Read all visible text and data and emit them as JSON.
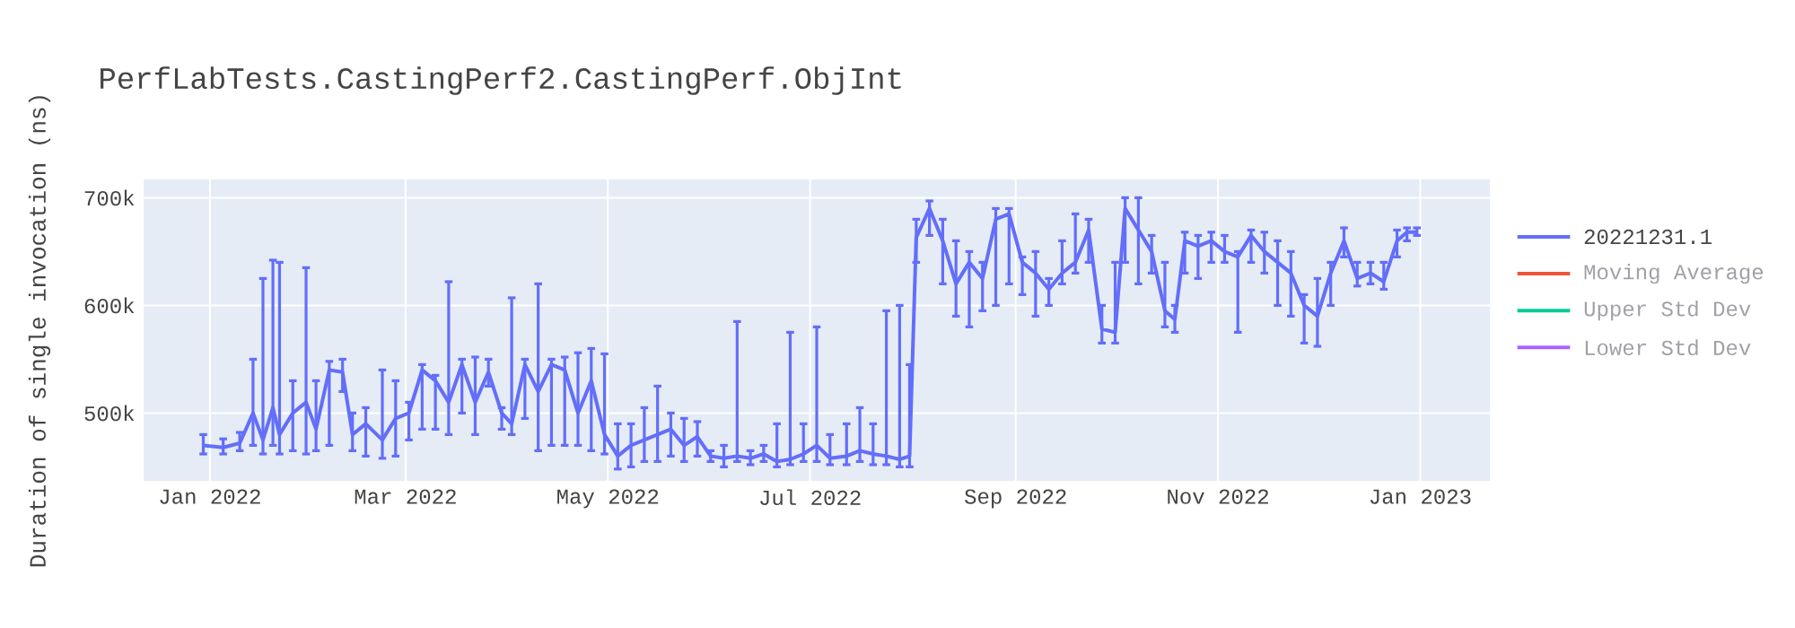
{
  "chart_data": {
    "type": "line",
    "title": "PerfLabTests.CastingPerf2.CastingPerf.ObjInt",
    "ylabel": "Duration of single invocation (ns)",
    "xlim": [
      "2021-12-12",
      "2023-01-22"
    ],
    "ylim": [
      437000,
      717000
    ],
    "xticks": [
      {
        "value": "2022-01-01",
        "label": "Jan 2022"
      },
      {
        "value": "2022-03-01",
        "label": "Mar 2022"
      },
      {
        "value": "2022-05-01",
        "label": "May 2022"
      },
      {
        "value": "2022-07-01",
        "label": "Jul 2022"
      },
      {
        "value": "2022-09-01",
        "label": "Sep 2022"
      },
      {
        "value": "2022-11-01",
        "label": "Nov 2022"
      },
      {
        "value": "2023-01-01",
        "label": "Jan 2023"
      }
    ],
    "yticks": [
      {
        "value": 500000,
        "label": "500k"
      },
      {
        "value": 600000,
        "label": "600k"
      },
      {
        "value": 700000,
        "label": "700k"
      }
    ],
    "grid": true,
    "legend": "right",
    "x": [
      "2021-12-30",
      "2022-01-05",
      "2022-01-10",
      "2022-01-14",
      "2022-01-17",
      "2022-01-20",
      "2022-01-22",
      "2022-01-26",
      "2022-01-30",
      "2022-02-02",
      "2022-02-06",
      "2022-02-10",
      "2022-02-13",
      "2022-02-17",
      "2022-02-22",
      "2022-02-26",
      "2022-03-02",
      "2022-03-06",
      "2022-03-10",
      "2022-03-14",
      "2022-03-18",
      "2022-03-22",
      "2022-03-26",
      "2022-03-30",
      "2022-04-02",
      "2022-04-06",
      "2022-04-10",
      "2022-04-14",
      "2022-04-18",
      "2022-04-22",
      "2022-04-26",
      "2022-04-30",
      "2022-05-04",
      "2022-05-08",
      "2022-05-12",
      "2022-05-16",
      "2022-05-20",
      "2022-05-24",
      "2022-05-28",
      "2022-06-01",
      "2022-06-05",
      "2022-06-09",
      "2022-06-13",
      "2022-06-17",
      "2022-06-21",
      "2022-06-25",
      "2022-06-29",
      "2022-07-03",
      "2022-07-07",
      "2022-07-12",
      "2022-07-16",
      "2022-07-20",
      "2022-07-24",
      "2022-07-28",
      "2022-07-31",
      "2022-08-02",
      "2022-08-06",
      "2022-08-10",
      "2022-08-14",
      "2022-08-18",
      "2022-08-22",
      "2022-08-26",
      "2022-08-30",
      "2022-09-03",
      "2022-09-07",
      "2022-09-11",
      "2022-09-15",
      "2022-09-19",
      "2022-09-23",
      "2022-09-27",
      "2022-10-01",
      "2022-10-04",
      "2022-10-08",
      "2022-10-12",
      "2022-10-16",
      "2022-10-19",
      "2022-10-22",
      "2022-10-26",
      "2022-10-30",
      "2022-11-03",
      "2022-11-07",
      "2022-11-11",
      "2022-11-15",
      "2022-11-19",
      "2022-11-23",
      "2022-11-27",
      "2022-12-01",
      "2022-12-05",
      "2022-12-09",
      "2022-12-13",
      "2022-12-17",
      "2022-12-21",
      "2022-12-25",
      "2022-12-28",
      "2022-12-31"
    ],
    "series": [
      {
        "name": "20221231.1",
        "color": "#636efa",
        "values": [
          470000,
          468000,
          472000,
          500000,
          475000,
          505000,
          480000,
          500000,
          510000,
          485000,
          540000,
          538000,
          480000,
          490000,
          475000,
          495000,
          500000,
          540000,
          530000,
          510000,
          545000,
          510000,
          538000,
          500000,
          490000,
          545000,
          520000,
          545000,
          540000,
          500000,
          530000,
          480000,
          460000,
          470000,
          475000,
          480000,
          485000,
          470000,
          478000,
          460000,
          458000,
          460000,
          458000,
          462000,
          455000,
          457000,
          462000,
          470000,
          458000,
          460000,
          465000,
          462000,
          460000,
          457000,
          460000,
          663000,
          690000,
          660000,
          620000,
          640000,
          625000,
          680000,
          685000,
          640000,
          630000,
          615000,
          630000,
          640000,
          670000,
          578000,
          575000,
          690000,
          670000,
          650000,
          595000,
          587000,
          660000,
          655000,
          660000,
          650000,
          645000,
          665000,
          650000,
          640000,
          630000,
          600000,
          590000,
          630000,
          660000,
          625000,
          630000,
          622000,
          660000,
          668000,
          668000
        ],
        "errors": [
          [
            462000,
            480000
          ],
          [
            462000,
            476000
          ],
          [
            465000,
            482000
          ],
          [
            470000,
            550000
          ],
          [
            462000,
            625000
          ],
          [
            470000,
            642000
          ],
          [
            462000,
            640000
          ],
          [
            465000,
            530000
          ],
          [
            462000,
            635000
          ],
          [
            465000,
            530000
          ],
          [
            470000,
            548000
          ],
          [
            520000,
            550000
          ],
          [
            465000,
            500000
          ],
          [
            460000,
            505000
          ],
          [
            458000,
            540000
          ],
          [
            460000,
            530000
          ],
          [
            475000,
            510000
          ],
          [
            485000,
            545000
          ],
          [
            485000,
            535000
          ],
          [
            480000,
            622000
          ],
          [
            500000,
            550000
          ],
          [
            480000,
            552000
          ],
          [
            525000,
            550000
          ],
          [
            485000,
            505000
          ],
          [
            480000,
            607000
          ],
          [
            495000,
            550000
          ],
          [
            465000,
            620000
          ],
          [
            470000,
            550000
          ],
          [
            470000,
            552000
          ],
          [
            470000,
            556000
          ],
          [
            465000,
            560000
          ],
          [
            462000,
            555000
          ],
          [
            448000,
            490000
          ],
          [
            450000,
            490000
          ],
          [
            455000,
            505000
          ],
          [
            455000,
            525000
          ],
          [
            460000,
            500000
          ],
          [
            455000,
            495000
          ],
          [
            460000,
            492000
          ],
          [
            455000,
            465000
          ],
          [
            450000,
            470000
          ],
          [
            455000,
            585000
          ],
          [
            452000,
            465000
          ],
          [
            455000,
            470000
          ],
          [
            450000,
            490000
          ],
          [
            452000,
            575000
          ],
          [
            455000,
            490000
          ],
          [
            455000,
            580000
          ],
          [
            452000,
            480000
          ],
          [
            452000,
            490000
          ],
          [
            455000,
            505000
          ],
          [
            452000,
            490000
          ],
          [
            452000,
            595000
          ],
          [
            450000,
            600000
          ],
          [
            450000,
            545000
          ],
          [
            640000,
            680000
          ],
          [
            665000,
            697000
          ],
          [
            620000,
            680000
          ],
          [
            590000,
            660000
          ],
          [
            580000,
            650000
          ],
          [
            595000,
            640000
          ],
          [
            600000,
            690000
          ],
          [
            620000,
            690000
          ],
          [
            610000,
            645000
          ],
          [
            590000,
            650000
          ],
          [
            600000,
            625000
          ],
          [
            620000,
            660000
          ],
          [
            630000,
            685000
          ],
          [
            640000,
            680000
          ],
          [
            565000,
            600000
          ],
          [
            565000,
            640000
          ],
          [
            640000,
            700000
          ],
          [
            620000,
            700000
          ],
          [
            630000,
            665000
          ],
          [
            580000,
            640000
          ],
          [
            575000,
            600000
          ],
          [
            630000,
            668000
          ],
          [
            625000,
            665000
          ],
          [
            640000,
            668000
          ],
          [
            640000,
            665000
          ],
          [
            575000,
            650000
          ],
          [
            640000,
            670000
          ],
          [
            630000,
            668000
          ],
          [
            600000,
            660000
          ],
          [
            590000,
            650000
          ],
          [
            565000,
            610000
          ],
          [
            562000,
            625000
          ],
          [
            600000,
            640000
          ],
          [
            645000,
            672000
          ],
          [
            618000,
            640000
          ],
          [
            620000,
            640000
          ],
          [
            615000,
            640000
          ],
          [
            645000,
            670000
          ],
          [
            660000,
            672000
          ],
          [
            665000,
            672000
          ]
        ]
      },
      {
        "name": "Moving Average",
        "color": "#ef553b",
        "values": [
          null,
          null,
          null,
          null,
          null,
          null,
          null,
          null,
          null,
          null,
          null,
          null,
          null,
          null,
          null,
          null,
          null,
          null,
          null,
          null,
          null,
          null,
          null,
          null,
          null,
          null,
          null,
          null,
          null,
          null,
          null,
          null,
          null,
          null,
          null,
          null,
          null,
          null,
          null,
          null,
          null,
          null,
          null,
          null,
          null,
          null,
          null,
          null,
          null,
          null,
          null,
          null,
          null,
          null,
          null,
          null,
          null,
          null,
          null,
          null,
          null,
          null,
          null,
          null,
          null,
          null,
          null,
          null,
          null,
          null,
          null,
          null,
          null,
          null,
          null,
          null,
          null,
          null,
          null,
          null,
          null,
          null,
          null,
          null,
          null,
          null,
          null,
          null,
          null,
          null,
          null,
          null,
          null,
          null,
          null
        ]
      },
      {
        "name": "Upper Std Dev",
        "color": "#00cc96",
        "values": [
          null,
          null,
          null,
          null,
          null,
          null,
          null,
          null,
          null,
          null,
          null,
          null,
          null,
          null,
          null,
          null,
          null,
          null,
          null,
          null,
          null,
          null,
          null,
          null,
          null,
          null,
          null,
          null,
          null,
          null,
          null,
          null,
          null,
          null,
          null,
          null,
          null,
          null,
          null,
          null,
          null,
          null,
          null,
          null,
          null,
          null,
          null,
          null,
          null,
          null,
          null,
          null,
          null,
          null,
          null,
          null,
          null,
          null,
          null,
          null,
          null,
          null,
          null,
          null,
          null,
          null,
          null,
          null,
          null,
          null,
          null,
          null,
          null,
          null,
          null,
          null,
          null,
          null,
          null,
          null,
          null,
          null,
          null,
          null,
          null,
          null,
          null,
          null,
          null,
          null,
          null,
          null,
          null,
          null,
          null
        ]
      },
      {
        "name": "Lower Std Dev",
        "color": "#ab63fa",
        "values": [
          null,
          null,
          null,
          null,
          null,
          null,
          null,
          null,
          null,
          null,
          null,
          null,
          null,
          null,
          null,
          null,
          null,
          null,
          null,
          null,
          null,
          null,
          null,
          null,
          null,
          null,
          null,
          null,
          null,
          null,
          null,
          null,
          null,
          null,
          null,
          null,
          null,
          null,
          null,
          null,
          null,
          null,
          null,
          null,
          null,
          null,
          null,
          null,
          null,
          null,
          null,
          null,
          null,
          null,
          null,
          null,
          null,
          null,
          null,
          null,
          null,
          null,
          null,
          null,
          null,
          null,
          null,
          null,
          null,
          null,
          null,
          null,
          null,
          null,
          null,
          null,
          null,
          null,
          null,
          null,
          null,
          null,
          null,
          null,
          null,
          null,
          null,
          null,
          null,
          null,
          null,
          null,
          null,
          null,
          null
        ]
      }
    ]
  }
}
